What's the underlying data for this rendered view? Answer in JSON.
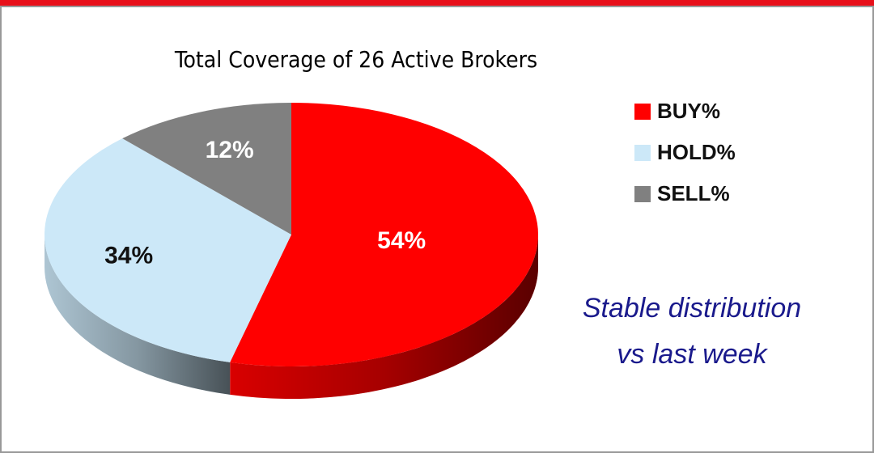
{
  "chart_data": {
    "type": "pie",
    "title": "Total Coverage of 26 Active Brokers",
    "categories": [
      "BUY%",
      "HOLD%",
      "SELL%"
    ],
    "values": [
      54,
      34,
      12
    ],
    "value_labels": [
      "54%",
      "34%",
      "12%"
    ],
    "colors": [
      "#ff0000",
      "#cce8f8",
      "#808080"
    ],
    "legend": "right",
    "annotation": [
      "Stable distribution",
      "vs last week"
    ]
  }
}
